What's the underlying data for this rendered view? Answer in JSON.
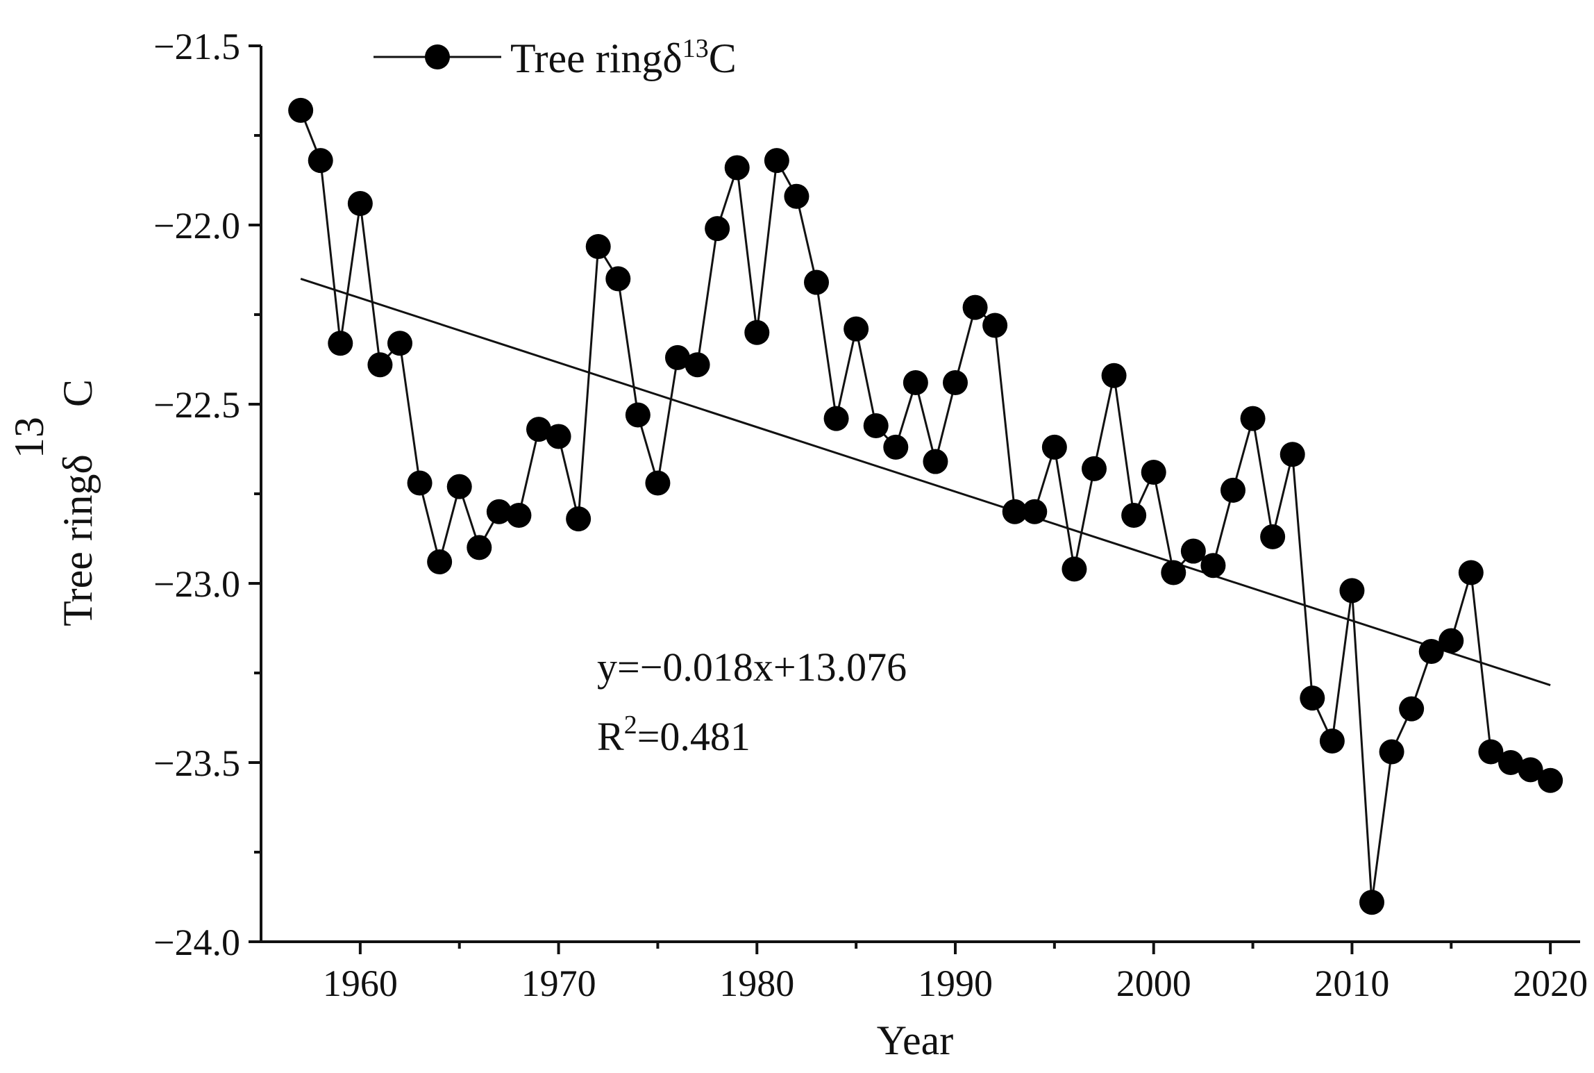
{
  "chart_data": {
    "type": "line",
    "title": "",
    "xlabel": "Year",
    "ylabel": {
      "prefix": "Tree ringδ",
      "superscript": "13",
      "suffix": "C"
    },
    "xlim": [
      1955,
      2021.5
    ],
    "ylim": [
      -24.0,
      -21.5
    ],
    "xticks": [
      1960,
      1970,
      1980,
      1990,
      2000,
      2010,
      2020
    ],
    "yticks": [
      -21.5,
      -22.0,
      -22.5,
      -23.0,
      -23.5,
      -24.0
    ],
    "ytick_labels": [
      "−21.5",
      "−22.0",
      "−22.5",
      "−23.0",
      "−23.5",
      "−24.0"
    ],
    "legend": {
      "position": "top-left",
      "prefix": "Tree ringδ",
      "superscript": "13",
      "suffix": "C"
    },
    "series": [
      {
        "name": "Tree ringδ13C",
        "x": [
          1957,
          1958,
          1959,
          1960,
          1961,
          1962,
          1963,
          1964,
          1965,
          1966,
          1967,
          1968,
          1969,
          1970,
          1971,
          1972,
          1973,
          1974,
          1975,
          1976,
          1977,
          1978,
          1979,
          1980,
          1981,
          1982,
          1983,
          1984,
          1985,
          1986,
          1987,
          1988,
          1989,
          1990,
          1991,
          1992,
          1993,
          1994,
          1995,
          1996,
          1997,
          1998,
          1999,
          2000,
          2001,
          2002,
          2003,
          2004,
          2005,
          2006,
          2007,
          2008,
          2009,
          2010,
          2011,
          2012,
          2013,
          2014,
          2015,
          2016,
          2017,
          2018,
          2019,
          2020
        ],
        "values": [
          -21.68,
          -21.82,
          -22.33,
          -21.94,
          -22.39,
          -22.33,
          -22.72,
          -22.94,
          -22.73,
          -22.9,
          -22.8,
          -22.81,
          -22.57,
          -22.59,
          -22.82,
          -22.06,
          -22.15,
          -22.53,
          -22.72,
          -22.37,
          -22.39,
          -22.01,
          -21.84,
          -22.3,
          -21.82,
          -21.92,
          -22.16,
          -22.54,
          -22.29,
          -22.56,
          -22.62,
          -22.44,
          -22.66,
          -22.44,
          -22.23,
          -22.28,
          -22.8,
          -22.8,
          -22.62,
          -22.96,
          -22.68,
          -22.42,
          -22.81,
          -22.69,
          -22.97,
          -22.91,
          -22.95,
          -22.74,
          -22.54,
          -22.87,
          -22.64,
          -23.32,
          -23.44,
          -23.02,
          -23.89,
          -23.47,
          -23.35,
          -23.19,
          -23.16,
          -22.97,
          -23.47,
          -23.5,
          -23.52,
          -23.55
        ]
      }
    ],
    "trendline": {
      "slope": -0.018,
      "intercept": 13.076,
      "x_start": 1957,
      "x_end": 2020
    },
    "annotations": {
      "equation": "y=−0.018x+13.076",
      "r2_prefix": "R",
      "r2_superscript": "2",
      "r2_suffix": "=0.481"
    }
  }
}
